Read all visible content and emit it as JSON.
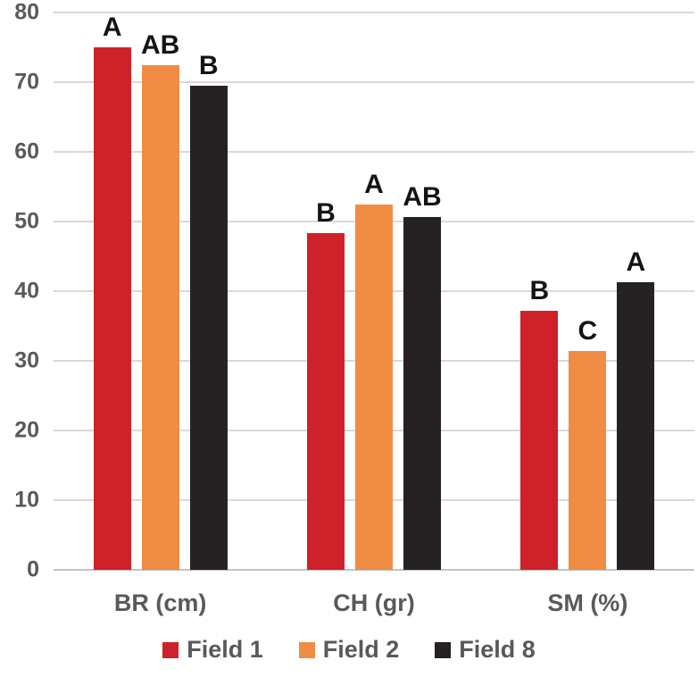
{
  "chart_data": {
    "type": "bar",
    "title": "",
    "xlabel": "",
    "ylabel": "",
    "categories": [
      "BR (cm)",
      "CH (gr)",
      "SM (%)"
    ],
    "series": [
      {
        "name": "Field 1",
        "color": "#cf2129",
        "values": [
          75,
          48.3,
          37.2
        ],
        "letters": [
          "A",
          "B",
          "B"
        ]
      },
      {
        "name": "Field 2",
        "color": "#f08c44",
        "values": [
          72.5,
          52.5,
          31.4
        ],
        "letters": [
          "AB",
          "A",
          "C"
        ]
      },
      {
        "name": "Field 8",
        "color": "#262223",
        "values": [
          69.5,
          50.7,
          41.3
        ],
        "letters": [
          "B",
          "AB",
          "A"
        ]
      }
    ],
    "ylim": [
      0,
      80
    ],
    "yticks": [
      0,
      10,
      20,
      30,
      40,
      50,
      60,
      70,
      80
    ],
    "grid": true,
    "legend_position": "bottom"
  },
  "colors": {
    "background": "#ffffff",
    "gridline": "#d9d9d9",
    "axis_line": "#c3c3c3",
    "tick_text": "#595959",
    "letter_text": "#171314"
  }
}
